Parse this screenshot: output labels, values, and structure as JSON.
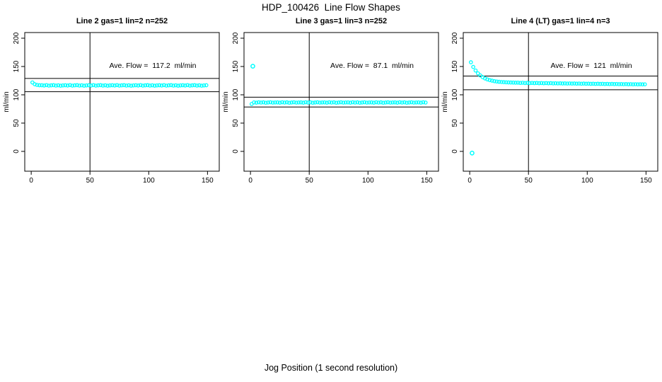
{
  "figure": {
    "title": "HDP_100426  Line Flow Shapes",
    "xlabel": "Jog Position (1 second resolution)",
    "point_color": "#00ffff",
    "axis_color": "#000000",
    "background": "#ffffff"
  },
  "chart_data": [
    {
      "type": "scatter",
      "title": "Line 2 gas=1 lin=2 n=252",
      "annotation": "Ave. Flow =  117.2  ml/min",
      "ave_flow_ml_min": 117.2,
      "n": 252,
      "ylabel": "ml/min",
      "xticks": [
        0,
        50,
        100,
        150
      ],
      "yticks": [
        0,
        50,
        100,
        150,
        200
      ],
      "xlim": [
        -5.5,
        160
      ],
      "ylim": [
        -35,
        210
      ],
      "crosshair_x": 50,
      "ref_lines_y": [
        128.9,
        105.5
      ],
      "band": {
        "x_start": 1,
        "x_step": 2,
        "y": [
          121.8,
          118.6,
          117.4,
          116.9,
          116.9,
          116.4,
          117.1,
          116.2,
          116.7,
          117.0,
          116.3,
          116.8,
          116.1,
          116.6,
          116.9,
          116.4,
          117.1,
          116.2,
          116.7,
          117.0,
          116.3,
          116.8,
          116.1,
          116.6,
          116.9,
          116.4,
          117.1,
          116.2,
          116.7,
          117.0,
          116.3,
          116.8,
          116.1,
          116.6,
          116.9,
          116.4,
          117.1,
          116.2,
          116.7,
          117.0,
          116.3,
          116.8,
          116.1,
          116.6,
          116.9,
          116.4,
          117.1,
          116.2,
          116.7,
          117.0,
          116.3,
          116.8,
          116.1,
          116.6,
          116.9,
          116.4,
          117.1,
          116.2,
          116.7,
          117.0,
          116.3,
          116.8,
          116.1,
          116.6,
          116.9,
          116.4,
          117.1,
          116.2,
          116.7,
          117.0,
          116.3,
          116.8,
          116.1,
          116.6,
          116.9
        ]
      },
      "outliers": []
    },
    {
      "type": "scatter",
      "title": "Line 3 gas=1 lin=3 n=252",
      "annotation": "Ave. Flow =  87.1  ml/min",
      "ave_flow_ml_min": 87.1,
      "n": 252,
      "ylabel": "ml/min",
      "xticks": [
        0,
        50,
        100,
        150
      ],
      "yticks": [
        0,
        50,
        100,
        150,
        200
      ],
      "xlim": [
        -5.5,
        160
      ],
      "ylim": [
        -35,
        210
      ],
      "crosshair_x": 50,
      "ref_lines_y": [
        95.8,
        78.4
      ],
      "band": {
        "x_start": 1,
        "x_step": 2,
        "y": [
          83.8,
          86.6,
          86.1,
          86.8,
          86.3,
          86.7,
          86.0,
          86.4,
          86.8,
          86.2,
          86.5,
          86.6,
          86.1,
          86.8,
          86.3,
          86.7,
          86.0,
          86.4,
          86.8,
          86.2,
          86.5,
          86.6,
          86.1,
          86.8,
          86.3,
          86.7,
          86.0,
          86.4,
          86.8,
          86.2,
          86.5,
          86.6,
          86.1,
          86.8,
          86.3,
          86.7,
          86.0,
          86.4,
          86.8,
          86.2,
          86.5,
          86.6,
          86.1,
          86.8,
          86.3,
          86.7,
          86.0,
          86.4,
          86.8,
          86.2,
          86.5,
          86.6,
          86.1,
          86.8,
          86.3,
          86.7,
          86.0,
          86.4,
          86.8,
          86.2,
          86.5,
          86.6,
          86.1,
          86.8,
          86.3,
          86.7,
          86.0,
          86.4,
          86.8,
          86.2,
          86.5,
          86.6,
          86.1,
          86.8,
          86.3
        ]
      },
      "outliers": [
        [
          2,
          150.5
        ]
      ]
    },
    {
      "type": "scatter",
      "title": "Line 4 (LT) gas=1 lin=4 n=3",
      "annotation": "Ave. Flow =  121  ml/min",
      "ave_flow_ml_min": 121,
      "n": 3,
      "ylabel": "ml/min",
      "xticks": [
        0,
        50,
        100,
        150
      ],
      "yticks": [
        0,
        50,
        100,
        150,
        200
      ],
      "xlim": [
        -5.5,
        160
      ],
      "ylim": [
        -35,
        210
      ],
      "crosshair_x": 50,
      "ref_lines_y": [
        133.1,
        108.9
      ],
      "band": {
        "x_start": 1,
        "x_step": 2,
        "y": [
          157.5,
          149.2,
          142.9,
          137.9,
          134.2,
          131.1,
          128.9,
          127.2,
          125.9,
          125.0,
          124.1,
          123.5,
          123.0,
          122.6,
          122.3,
          122.1,
          121.9,
          121.7,
          121.6,
          121.4,
          121.5,
          121.0,
          121.3,
          120.8,
          121.1,
          120.7,
          121.0,
          120.6,
          120.9,
          120.5,
          120.8,
          120.4,
          120.7,
          120.3,
          120.6,
          120.2,
          120.4,
          120.1,
          120.3,
          120.0,
          120.2,
          119.9,
          120.1,
          119.8,
          120.0,
          119.7,
          119.9,
          119.6,
          119.8,
          119.5,
          119.7,
          119.4,
          119.6,
          119.3,
          119.5,
          119.2,
          119.4,
          119.1,
          119.3,
          119.0,
          119.2,
          118.9,
          119.1,
          118.8,
          119.0,
          118.7,
          118.9,
          118.6,
          118.8,
          118.5,
          118.7,
          118.4,
          118.6,
          118.4,
          118.5
        ]
      },
      "outliers": [
        [
          2,
          -3
        ]
      ]
    }
  ]
}
